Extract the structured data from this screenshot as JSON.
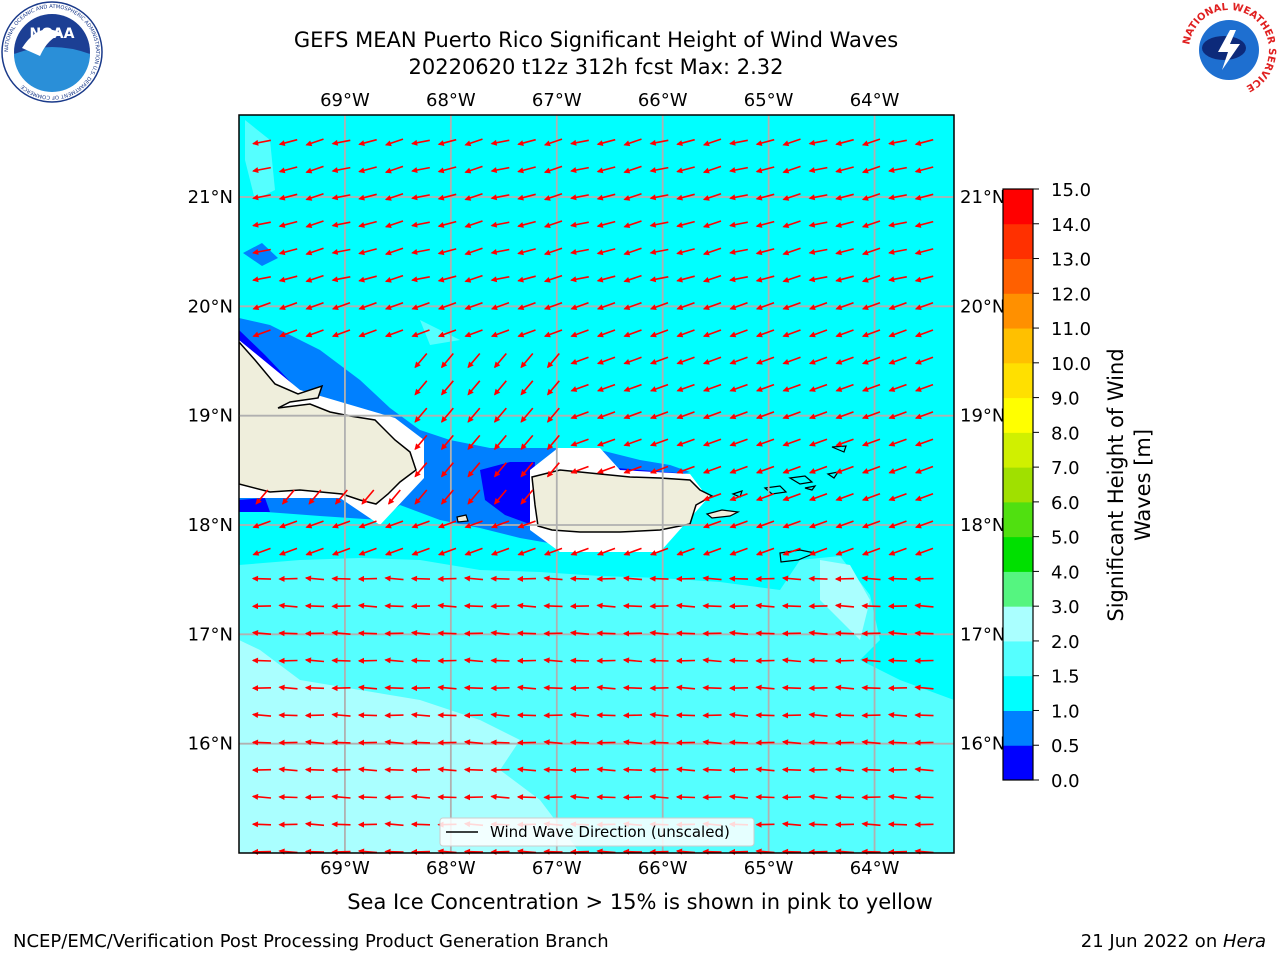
{
  "title": {
    "line1": "GEFS MEAN Puerto Rico Significant Height of Wind Waves",
    "line2": "20220620 t12z 312h fcst   Max: 2.32"
  },
  "map": {
    "lon_range": [
      -70.0,
      -63.25
    ],
    "lat_range": [
      15.0,
      21.75
    ],
    "lon_ticks": [
      {
        "value": -69,
        "label": "69°W"
      },
      {
        "value": -68,
        "label": "68°W"
      },
      {
        "value": -67,
        "label": "67°W"
      },
      {
        "value": -66,
        "label": "66°W"
      },
      {
        "value": -65,
        "label": "65°W"
      },
      {
        "value": -64,
        "label": "64°W"
      }
    ],
    "lat_ticks": [
      {
        "value": 21,
        "label": "21°N"
      },
      {
        "value": 20,
        "label": "20°N"
      },
      {
        "value": 19,
        "label": "19°N"
      },
      {
        "value": 18,
        "label": "18°N"
      },
      {
        "value": 17,
        "label": "17°N"
      },
      {
        "value": 16,
        "label": "16°N"
      }
    ],
    "background_field_color": "#00ffff",
    "land_color": "#efeedc",
    "arrow_color": "#ff0000",
    "legend_label": "Wind Wave Direction (unscaled)"
  },
  "colorbar": {
    "label": "Significant Height of Wind Waves [m]",
    "label_line1": "Significant Height of Wind",
    "label_line2": "Waves [m]",
    "levels": [
      "0.0",
      "0.5",
      "1.0",
      "1.5",
      "2.0",
      "3.0",
      "4.0",
      "5.0",
      "6.0",
      "7.0",
      "8.0",
      "9.0",
      "10.0",
      "11.0",
      "12.0",
      "13.0",
      "14.0",
      "15.0"
    ],
    "colors": [
      "#0000ff",
      "#0080ff",
      "#00ffff",
      "#55ffff",
      "#aaffff",
      "#55f580",
      "#00e000",
      "#50e010",
      "#a0e000",
      "#d0f000",
      "#ffff00",
      "#ffe000",
      "#ffc000",
      "#ff9000",
      "#ff6000",
      "#ff3000",
      "#ff0000"
    ]
  },
  "ice_note": "Sea Ice Concentration > 15% is shown in pink to yellow",
  "footer": {
    "left": "NCEP/EMC/Verification Post Processing Product Generation Branch",
    "right_date": "21 Jun 2022 on ",
    "right_host": "Hera"
  },
  "logos": {
    "noaa": "noaa-logo",
    "nws": "nws-logo",
    "noaa_text": "NOAA",
    "nws_ring_text": "NATIONAL WEATHER SERVICE",
    "noaa_ring_text": "NATIONAL OCEANIC AND ATMOSPHERIC ADMINISTRATION U.S. DEPARTMENT OF COMMERCE"
  }
}
